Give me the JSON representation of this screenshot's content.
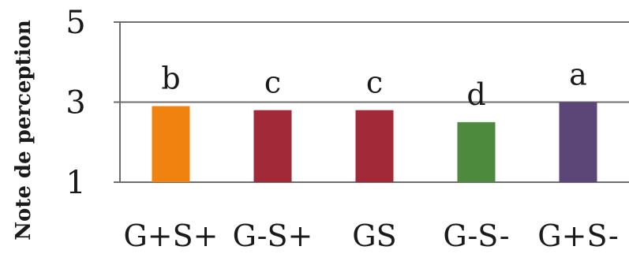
{
  "chart_data": {
    "type": "bar",
    "title": "",
    "xlabel": "",
    "ylabel": "Note de perception",
    "categories": [
      "G+S+",
      "G-S+",
      "GS",
      "G-S-",
      "G+S-"
    ],
    "values": [
      2.9,
      2.8,
      2.8,
      2.5,
      3.0
    ],
    "significance_letters": [
      "b",
      "c",
      "c",
      "d",
      "a"
    ],
    "bar_colors": [
      "#F0820F",
      "#A22A38",
      "#A22A38",
      "#4E8A3D",
      "#5C4677"
    ],
    "ylim": [
      1,
      5
    ],
    "yticks": [
      1,
      3,
      5
    ],
    "grid": true,
    "legend": "none"
  }
}
